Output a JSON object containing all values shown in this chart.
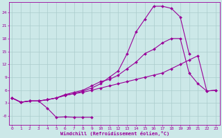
{
  "xlabel": "Windchill (Refroidissement éolien,°C)",
  "bg_color": "#cce8e8",
  "line_color": "#990099",
  "grid_color": "#aacccc",
  "x_ticks": [
    0,
    1,
    2,
    3,
    4,
    5,
    6,
    7,
    8,
    9,
    10,
    11,
    12,
    13,
    14,
    15,
    16,
    17,
    18,
    19,
    20,
    21,
    22,
    23
  ],
  "y_ticks": [
    0,
    3,
    6,
    9,
    12,
    15,
    18,
    21,
    24
  ],
  "y_tick_labels": [
    "-0",
    "3",
    "6",
    "9",
    "12",
    "15",
    "18",
    "21",
    "24"
  ],
  "xlim": [
    -0.3,
    23.5
  ],
  "ylim": [
    -2.0,
    26.5
  ],
  "line1_x": [
    0,
    1,
    2,
    3,
    4,
    5,
    6,
    7,
    8,
    9
  ],
  "line1_y": [
    4.2,
    3.2,
    3.5,
    3.5,
    1.8,
    -0.3,
    -0.2,
    -0.3,
    -0.3,
    -0.3
  ],
  "line2_x": [
    0,
    1,
    2,
    3,
    4,
    5,
    6,
    7,
    8,
    9,
    10,
    11,
    12,
    13,
    14,
    15,
    16,
    17,
    18,
    19,
    20,
    21,
    22,
    23
  ],
  "line2_y": [
    4.2,
    3.2,
    3.5,
    3.5,
    3.8,
    4.2,
    4.8,
    5.2,
    5.5,
    6.0,
    6.5,
    7.0,
    7.5,
    8.0,
    8.5,
    9.0,
    9.5,
    10.0,
    11.0,
    12.0,
    13.0,
    14.0,
    5.8,
    6.0
  ],
  "line3_x": [
    0,
    1,
    2,
    3,
    4,
    5,
    6,
    7,
    8,
    9,
    10,
    11,
    12,
    13,
    14,
    15,
    16,
    17,
    18,
    19,
    20
  ],
  "line3_y": [
    4.2,
    3.2,
    3.5,
    3.5,
    3.8,
    4.2,
    4.8,
    5.2,
    5.8,
    6.5,
    7.5,
    9.0,
    10.5,
    14.5,
    19.5,
    22.5,
    25.5,
    25.5,
    25.0,
    23.0,
    14.5
  ],
  "line4_x": [
    0,
    1,
    2,
    3,
    4,
    5,
    6,
    7,
    8,
    9,
    10,
    11,
    12,
    13,
    14,
    15,
    16,
    17,
    18,
    19,
    20,
    21,
    22,
    23
  ],
  "line4_y": [
    4.2,
    3.2,
    3.5,
    3.5,
    3.8,
    4.2,
    5.0,
    5.5,
    6.0,
    7.0,
    8.0,
    8.5,
    9.5,
    11.0,
    12.5,
    14.5,
    15.5,
    17.0,
    18.0,
    18.0,
    10.0,
    7.5,
    5.8,
    6.0
  ]
}
